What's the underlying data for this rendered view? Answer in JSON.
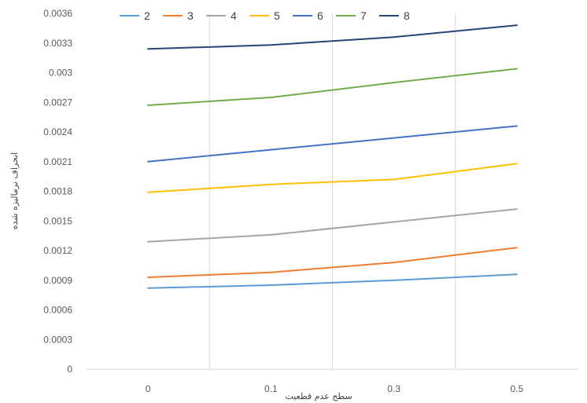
{
  "chart_data": {
    "type": "line",
    "xlabel": "سطح عدم قطعیت",
    "ylabel": "انحراف نرمالیزه شده",
    "categories": [
      "0",
      "0.1",
      "0.3",
      "0.5"
    ],
    "ylim": [
      0,
      0.0036
    ],
    "yticks": [
      "0",
      "0.0003",
      "0.0006",
      "0.0009",
      "0.0012",
      "0.0015",
      "0.0018",
      "0.0021",
      "0.0024",
      "0.0027",
      "0.003",
      "0.0033",
      "0.0036"
    ],
    "grid": "vertical",
    "legend_position": "top",
    "series": [
      {
        "name": "2",
        "color": "#5B9BD5",
        "values": [
          0.00082,
          0.00085,
          0.0009,
          0.00096
        ]
      },
      {
        "name": "3",
        "color": "#ED7D31",
        "values": [
          0.00093,
          0.00098,
          0.00108,
          0.00123
        ]
      },
      {
        "name": "4",
        "color": "#A5A5A5",
        "values": [
          0.00129,
          0.00136,
          0.00149,
          0.00162
        ]
      },
      {
        "name": "5",
        "color": "#FFC000",
        "values": [
          0.00179,
          0.00187,
          0.00192,
          0.00208
        ]
      },
      {
        "name": "6",
        "color": "#4472C4",
        "values": [
          0.0021,
          0.00222,
          0.00234,
          0.00246
        ]
      },
      {
        "name": "7",
        "color": "#70AD47",
        "values": [
          0.00267,
          0.00275,
          0.0029,
          0.00304
        ]
      },
      {
        "name": "8",
        "color": "#264478",
        "values": [
          0.00324,
          0.00328,
          0.00336,
          0.00348
        ]
      }
    ]
  }
}
